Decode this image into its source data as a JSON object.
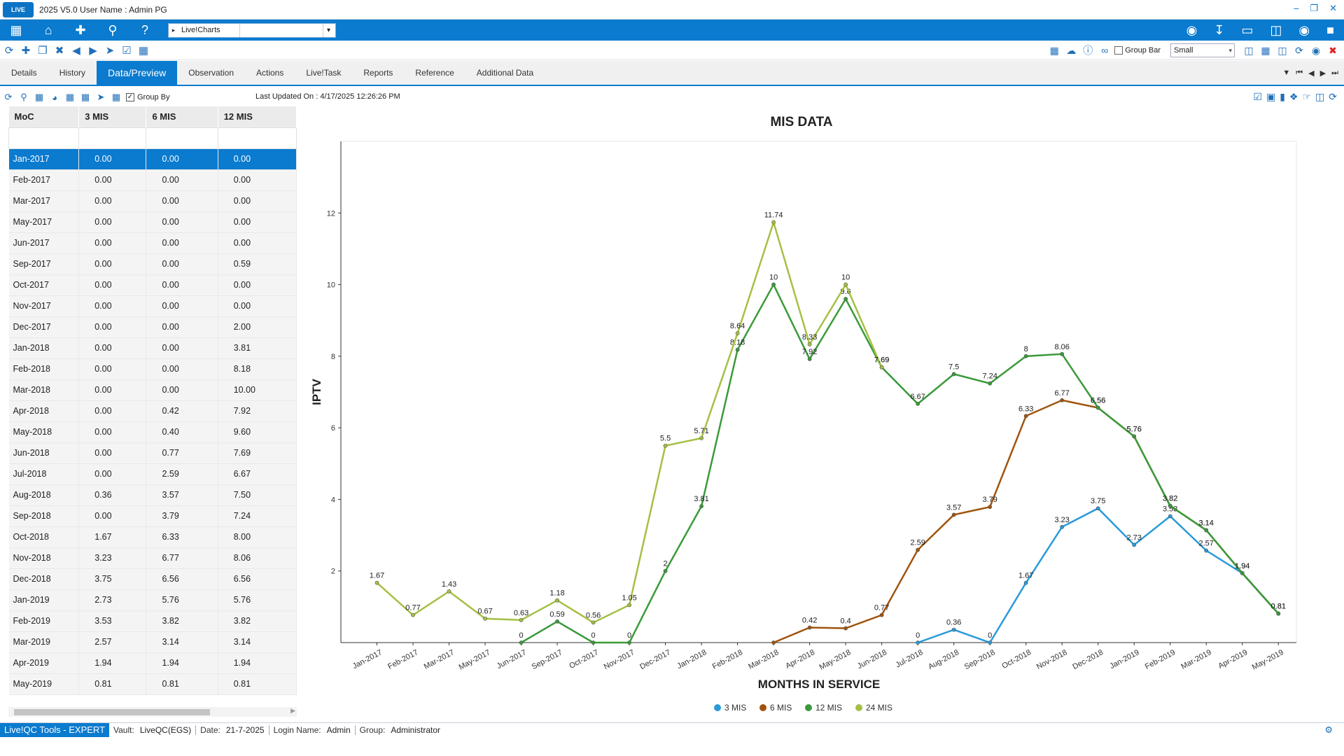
{
  "window": {
    "title": "2025 V5.0  User Name : Admin PG",
    "logo_text": "LIVE"
  },
  "navbar": {
    "combo_value": "Live!Charts",
    "combo_text": ""
  },
  "toolbar2": {
    "group_bar_label": "Group Bar",
    "size_value": "Small"
  },
  "tabs": [
    {
      "label": "Details"
    },
    {
      "label": "History"
    },
    {
      "label": "Data/Preview"
    },
    {
      "label": "Observation"
    },
    {
      "label": "Actions"
    },
    {
      "label": "Live!Task"
    },
    {
      "label": "Reports"
    },
    {
      "label": "Reference"
    },
    {
      "label": "Additional Data"
    }
  ],
  "subbar": {
    "group_by_label": "Group By",
    "group_by_check": "✓",
    "last_updated": "Last Updated On : 4/17/2025 12:26:26 PM"
  },
  "grid": {
    "headers": [
      "MoC",
      "3 MIS",
      "6 MIS",
      "12 MIS"
    ],
    "rows": [
      [
        "Jan-2017",
        "0.00",
        "0.00",
        "0.00"
      ],
      [
        "Feb-2017",
        "0.00",
        "0.00",
        "0.00"
      ],
      [
        "Mar-2017",
        "0.00",
        "0.00",
        "0.00"
      ],
      [
        "May-2017",
        "0.00",
        "0.00",
        "0.00"
      ],
      [
        "Jun-2017",
        "0.00",
        "0.00",
        "0.00"
      ],
      [
        "Sep-2017",
        "0.00",
        "0.00",
        "0.59"
      ],
      [
        "Oct-2017",
        "0.00",
        "0.00",
        "0.00"
      ],
      [
        "Nov-2017",
        "0.00",
        "0.00",
        "0.00"
      ],
      [
        "Dec-2017",
        "0.00",
        "0.00",
        "2.00"
      ],
      [
        "Jan-2018",
        "0.00",
        "0.00",
        "3.81"
      ],
      [
        "Feb-2018",
        "0.00",
        "0.00",
        "8.18"
      ],
      [
        "Mar-2018",
        "0.00",
        "0.00",
        "10.00"
      ],
      [
        "Apr-2018",
        "0.00",
        "0.42",
        "7.92"
      ],
      [
        "May-2018",
        "0.00",
        "0.40",
        "9.60"
      ],
      [
        "Jun-2018",
        "0.00",
        "0.77",
        "7.69"
      ],
      [
        "Jul-2018",
        "0.00",
        "2.59",
        "6.67"
      ],
      [
        "Aug-2018",
        "0.36",
        "3.57",
        "7.50"
      ],
      [
        "Sep-2018",
        "0.00",
        "3.79",
        "7.24"
      ],
      [
        "Oct-2018",
        "1.67",
        "6.33",
        "8.00"
      ],
      [
        "Nov-2018",
        "3.23",
        "6.77",
        "8.06"
      ],
      [
        "Dec-2018",
        "3.75",
        "6.56",
        "6.56"
      ],
      [
        "Jan-2019",
        "2.73",
        "5.76",
        "5.76"
      ],
      [
        "Feb-2019",
        "3.53",
        "3.82",
        "3.82"
      ],
      [
        "Mar-2019",
        "2.57",
        "3.14",
        "3.14"
      ],
      [
        "Apr-2019",
        "1.94",
        "1.94",
        "1.94"
      ],
      [
        "May-2019",
        "0.81",
        "0.81",
        "0.81"
      ]
    ]
  },
  "statusbar": {
    "product": "Live!QC Tools - EXPERT",
    "vault_label": "Vault:",
    "vault_value": "LiveQC(EGS)",
    "date_label": "Date:",
    "date_value": "21-7-2025",
    "login_label": "Login Name:",
    "login_value": "Admin",
    "group_label": "Group:",
    "group_value": "Administrator"
  },
  "chart_data": {
    "type": "line",
    "title": "MIS DATA",
    "xlabel": "MONTHS IN SERVICE",
    "ylabel": "IPTV",
    "ylim": [
      0,
      14
    ],
    "yticks": [
      2,
      4,
      6,
      8,
      10,
      12
    ],
    "grid": false,
    "legend": "bottom-center",
    "categories": [
      "Jan-2017",
      "Feb-2017",
      "Mar-2017",
      "May-2017",
      "Jun-2017",
      "Sep-2017",
      "Oct-2017",
      "Nov-2017",
      "Dec-2017",
      "Jan-2018",
      "Feb-2018",
      "Mar-2018",
      "Apr-2018",
      "May-2018",
      "Jun-2018",
      "Jul-2018",
      "Aug-2018",
      "Sep-2018",
      "Oct-2018",
      "Nov-2018",
      "Dec-2018",
      "Jan-2019",
      "Feb-2019",
      "Mar-2019",
      "Apr-2019",
      "May-2019"
    ],
    "series": [
      {
        "name": "3 MIS",
        "color": "#2a9ad8",
        "values": [
          null,
          null,
          null,
          null,
          null,
          null,
          null,
          null,
          null,
          null,
          null,
          null,
          null,
          null,
          null,
          0,
          0.36,
          0,
          1.67,
          3.23,
          3.75,
          2.73,
          3.53,
          2.57,
          1.94,
          0.81
        ],
        "labels": [
          "",
          "",
          "",
          "",
          "",
          "",
          "",
          "",
          "",
          "",
          "",
          "",
          "",
          "",
          "",
          "0",
          "0.36",
          "0",
          "1.67",
          "3.23",
          "3.75",
          "2.73",
          "3.53",
          "2.57",
          "",
          ""
        ]
      },
      {
        "name": "6 MIS",
        "color": "#a0540e",
        "values": [
          null,
          null,
          null,
          null,
          null,
          null,
          null,
          null,
          null,
          null,
          null,
          0,
          0.42,
          0.4,
          0.77,
          2.59,
          3.57,
          3.79,
          6.33,
          6.77,
          6.56,
          5.76,
          3.82,
          3.14,
          1.94,
          0.81
        ],
        "labels": [
          "",
          "",
          "",
          "",
          "",
          "",
          "",
          "",
          "",
          "",
          "",
          "",
          "0.42",
          "0.4",
          "0.77",
          "2.59",
          "3.57",
          "3.79",
          "6.33",
          "6.77",
          "6.56",
          "5.76",
          "3.82",
          "3.14",
          "1.94",
          "0.81"
        ]
      },
      {
        "name": "12 MIS",
        "color": "#3a9a3a",
        "values": [
          null,
          null,
          null,
          null,
          0,
          0.59,
          0,
          0,
          2,
          3.81,
          8.18,
          10,
          7.92,
          9.6,
          7.69,
          6.67,
          7.5,
          7.24,
          8,
          8.06,
          6.56,
          5.76,
          3.82,
          3.14,
          1.94,
          0.81
        ],
        "labels": [
          "0",
          "0",
          "0",
          "0",
          "0",
          "0.59",
          "0",
          "0",
          "2",
          "3.81",
          "8.18",
          "10",
          "7.92",
          "9.6",
          "7.69",
          "6.67",
          "7.5",
          "7.24",
          "8",
          "8.06",
          "6.56",
          "5.76",
          "3.82",
          "3.14",
          "1.94",
          "0.81"
        ]
      },
      {
        "name": "24 MIS",
        "color": "#a4c044",
        "values": [
          1.67,
          0.77,
          1.43,
          0.67,
          0.63,
          1.18,
          0.56,
          1.05,
          5.5,
          5.71,
          8.64,
          11.74,
          8.33,
          10,
          7.69,
          null,
          null,
          null,
          null,
          null,
          null,
          null,
          null,
          null,
          null,
          null
        ],
        "labels": [
          "1.67",
          "0.77",
          "1.43",
          "0.67",
          "0.63",
          "1.18",
          "0.56",
          "1.05",
          "5.5",
          "5.71",
          "8.64",
          "11.74",
          "8.33",
          "10",
          "7.69",
          "",
          "",
          "",
          "",
          "",
          "",
          "",
          "",
          "",
          "",
          ""
        ]
      }
    ]
  }
}
